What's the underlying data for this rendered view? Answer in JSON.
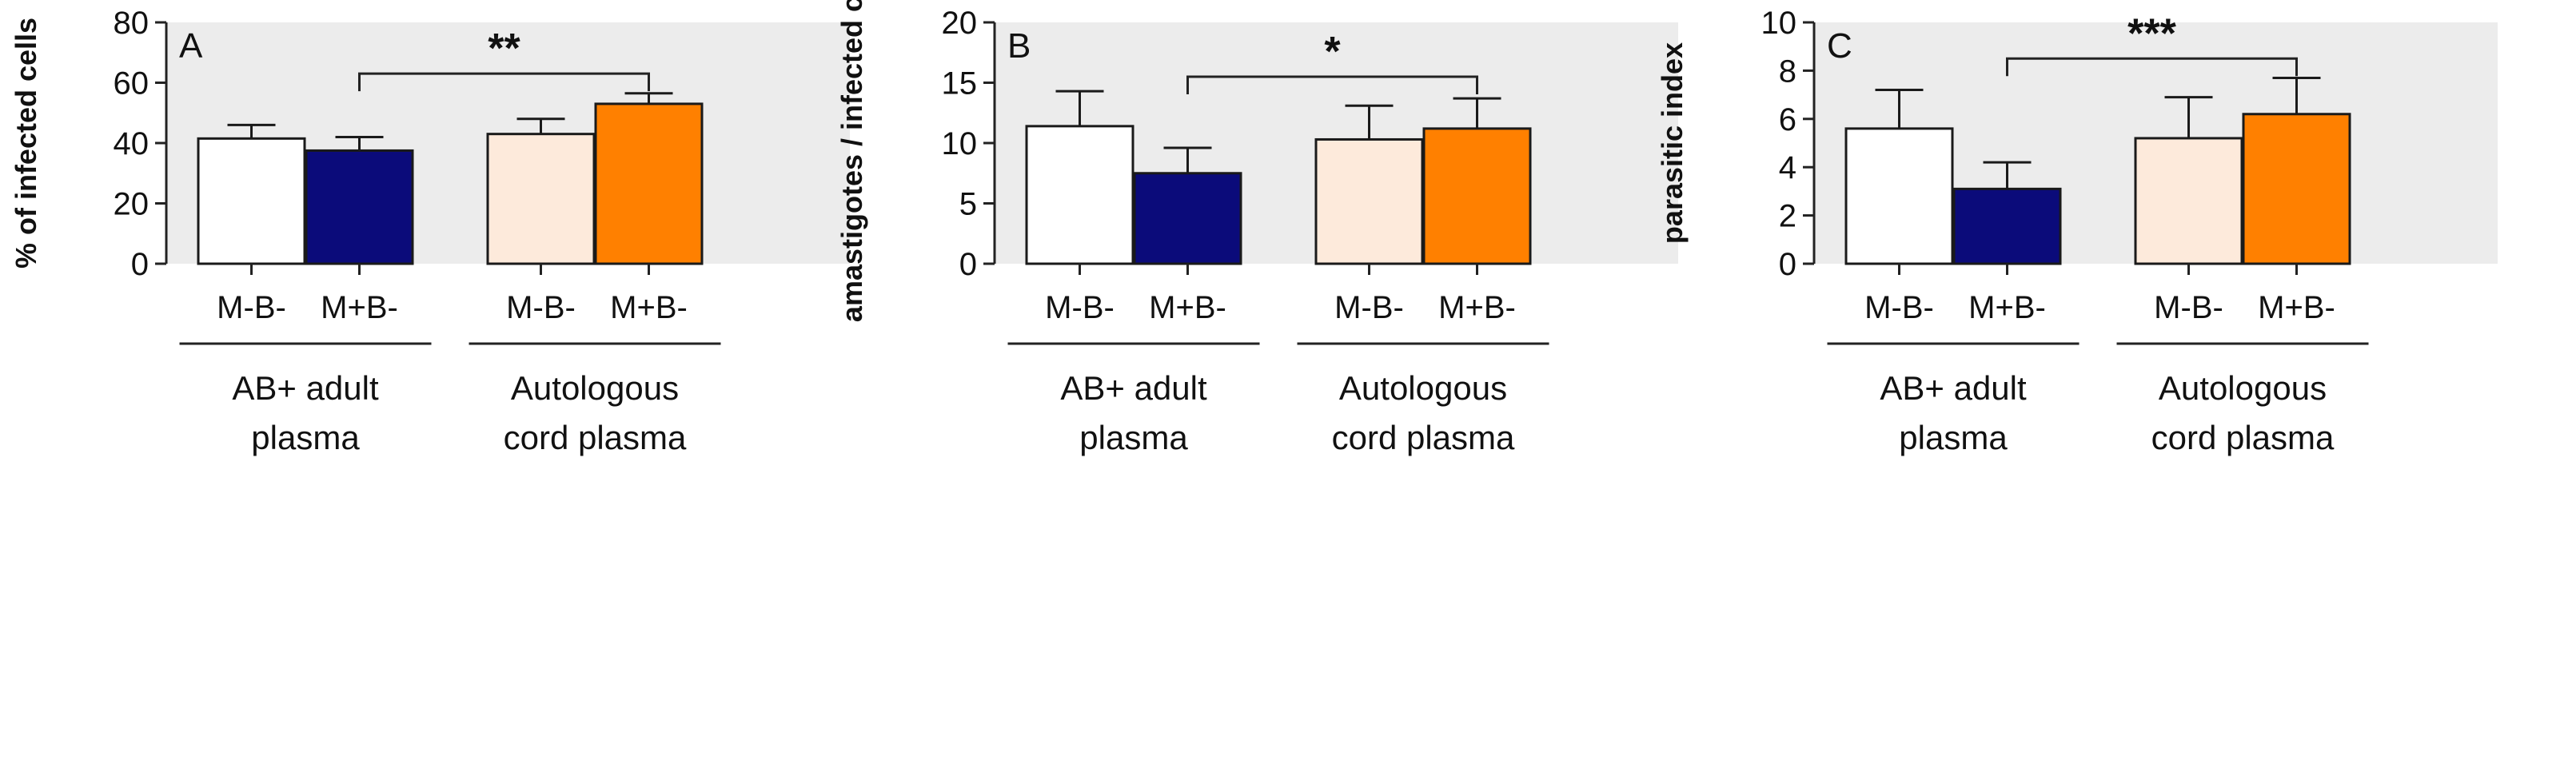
{
  "colors": {
    "background": "#ececec",
    "axis": "#222222",
    "bar_stroke": "#1a1a1a",
    "M-B- AB+ adult plasma": "#ffffff",
    "M+B- AB+ adult plasma": "#0b0b7a",
    "M-B- Autologous cord plasma": "#fdeadb",
    "M+B- Autologous cord plasma": "#ff8000"
  },
  "chart_data": [
    {
      "type": "bar",
      "panel": "A",
      "ylabel": "% of infected cells",
      "ylim": [
        0,
        80
      ],
      "yticks": [
        0,
        20,
        40,
        60,
        80
      ],
      "groups": [
        {
          "categories": [
            "M-B-",
            "M+B-"
          ],
          "label_lines": [
            "AB+ adult",
            "plasma"
          ]
        },
        {
          "categories": [
            "M-B-",
            "M+B-"
          ],
          "label_lines": [
            "Autologous",
            "cord plasma"
          ]
        }
      ],
      "values": [
        41.5,
        37.5,
        43,
        53
      ],
      "errors": [
        4.5,
        4.5,
        5,
        3.5
      ],
      "significance": {
        "label": "**",
        "from": 1,
        "to": 3,
        "y": 63
      }
    },
    {
      "type": "bar",
      "panel": "B",
      "ylabel": "amastigotes / infected cell",
      "ylim": [
        0,
        20
      ],
      "yticks": [
        0,
        5,
        10,
        15,
        20
      ],
      "groups": [
        {
          "categories": [
            "M-B-",
            "M+B-"
          ],
          "label_lines": [
            "AB+ adult",
            "plasma"
          ]
        },
        {
          "categories": [
            "M-B-",
            "M+B-"
          ],
          "label_lines": [
            "Autologous",
            "cord plasma"
          ]
        }
      ],
      "values": [
        11.4,
        7.5,
        10.3,
        11.2
      ],
      "errors": [
        2.9,
        2.1,
        2.8,
        2.5
      ],
      "significance": {
        "label": "*",
        "from": 1,
        "to": 3,
        "y": 15.5
      }
    },
    {
      "type": "bar",
      "panel": "C",
      "ylabel": "parasitic index",
      "ylim": [
        0,
        10
      ],
      "yticks": [
        0,
        2,
        4,
        6,
        8,
        10
      ],
      "groups": [
        {
          "categories": [
            "M-B-",
            "M+B-"
          ],
          "label_lines": [
            "AB+ adult",
            "plasma"
          ]
        },
        {
          "categories": [
            "M-B-",
            "M+B-"
          ],
          "label_lines": [
            "Autologous",
            "cord plasma"
          ]
        }
      ],
      "values": [
        5.6,
        3.1,
        5.2,
        6.2
      ],
      "errors": [
        1.6,
        1.1,
        1.7,
        1.5
      ],
      "significance": {
        "label": "***",
        "from": 1,
        "to": 3,
        "y": 8.5
      }
    }
  ]
}
